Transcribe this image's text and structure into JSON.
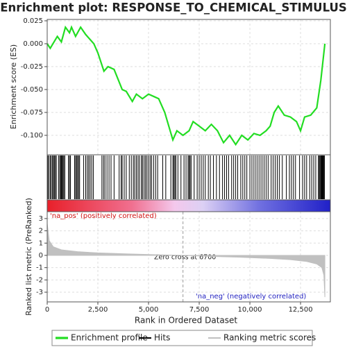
{
  "chart_data": [
    {
      "type": "line",
      "title": "Enrichment plot: RESPONSE_TO_CHEMICAL_STIMULUS",
      "ylabel": "Enrichment score (ES)",
      "xlim": [
        0,
        13970
      ],
      "ylim": [
        -0.1212,
        0.0265
      ],
      "yticks": [
        {
          "value": 0.025,
          "label": "0.025"
        },
        {
          "value": 0,
          "label": "0.000"
        },
        {
          "value": -0.025,
          "label": "-0.025"
        },
        {
          "value": -0.05,
          "label": "-0.050"
        },
        {
          "value": -0.075,
          "label": "-0.075"
        },
        {
          "value": -0.1,
          "label": "-0.100"
        }
      ],
      "grid": true,
      "x": [
        0,
        150,
        500,
        700,
        900,
        1100,
        1200,
        1400,
        1650,
        1900,
        2100,
        2300,
        2500,
        2800,
        3000,
        3300,
        3700,
        3900,
        4200,
        4400,
        4700,
        5000,
        5300,
        5500,
        5800,
        6000,
        6200,
        6400,
        6700,
        7000,
        7200,
        7500,
        7800,
        8100,
        8400,
        8700,
        9000,
        9300,
        9600,
        9900,
        10200,
        10500,
        10800,
        11000,
        11200,
        11400,
        11700,
        12000,
        12300,
        12500,
        12700,
        13000,
        13300,
        13500,
        13650,
        13700
      ],
      "series": [
        {
          "name": "Enrichment profile",
          "color": "#22dd22",
          "values": [
            0,
            -0.005,
            0.008,
            0.002,
            0.018,
            0.012,
            0.018,
            0.008,
            0.018,
            0.01,
            0.005,
            0,
            -0.01,
            -0.03,
            -0.025,
            -0.028,
            -0.05,
            -0.052,
            -0.063,
            -0.055,
            -0.06,
            -0.055,
            -0.058,
            -0.06,
            -0.075,
            -0.09,
            -0.105,
            -0.095,
            -0.1,
            -0.095,
            -0.085,
            -0.09,
            -0.095,
            -0.088,
            -0.095,
            -0.108,
            -0.1,
            -0.11,
            -0.1,
            -0.105,
            -0.098,
            -0.1,
            -0.095,
            -0.09,
            -0.075,
            -0.068,
            -0.078,
            -0.08,
            -0.085,
            -0.095,
            -0.08,
            -0.078,
            -0.07,
            -0.04,
            -0.01,
            0
          ]
        }
      ]
    },
    {
      "type": "hits",
      "xlim": [
        0,
        13970
      ],
      "series": [
        {
          "name": "Hits",
          "color": "#000000",
          "values": [
            30,
            80,
            150,
            200,
            260,
            310,
            350,
            400,
            450,
            560,
            620,
            660,
            700,
            740,
            780,
            820,
            870,
            1050,
            1100,
            1150,
            1350,
            1400,
            1450,
            1500,
            1550,
            1600,
            1800,
            1900,
            1980,
            2050,
            2120,
            2200,
            2280,
            2700,
            2780,
            2850,
            2950,
            3050,
            3150,
            3300,
            3550,
            3650,
            3700,
            3800,
            3900,
            4050,
            4150,
            4250,
            4320,
            4400,
            4480,
            4550,
            4650,
            4700,
            4780,
            4850,
            4920,
            5000,
            5080,
            5150,
            5250,
            5350,
            5450,
            5700,
            5850,
            6100,
            6200,
            6250,
            6300,
            6350,
            6450,
            6600,
            6750,
            6850,
            6950,
            7000,
            7050,
            7100,
            7250,
            7400,
            7500,
            7600,
            7700,
            7800,
            7950,
            8050,
            8200,
            8350,
            8500,
            8650,
            8750,
            8850,
            8950,
            9100,
            9200,
            9300,
            9400,
            9550,
            9650,
            9750,
            9850,
            10000,
            10100,
            10200,
            10300,
            10400,
            10500,
            10600,
            10700,
            10800,
            10900,
            11050,
            11150,
            11250,
            11350,
            11450,
            11600,
            11800,
            11950,
            12050,
            12150,
            12250,
            12450,
            12600,
            12700,
            12800,
            12950,
            13050,
            13150,
            13250,
            13380,
            13420,
            13460,
            13500,
            13530,
            13560,
            13590,
            13620,
            13650,
            13680
          ]
        }
      ]
    },
    {
      "type": "area",
      "ylabel": "Ranked list metric (PreRanked)",
      "xlabel": "Rank in Ordered Dataset",
      "xlim": [
        0,
        13970
      ],
      "ylim": [
        -3.79,
        3.56
      ],
      "xticks": [
        0,
        {
          "value": 2500,
          "label": "2,500"
        },
        {
          "value": 5000,
          "label": "5,000"
        },
        {
          "value": 7500,
          "label": "7,500"
        },
        {
          "value": 10000,
          "label": "10,000"
        },
        {
          "value": 12500,
          "label": "12,500"
        }
      ],
      "yticks": [
        3,
        2,
        1,
        0,
        -1,
        -2,
        -3
      ],
      "grid": true,
      "x": [
        0,
        100,
        300,
        700,
        1500,
        2500,
        4000,
        5500,
        6700,
        8000,
        9500,
        11000,
        12000,
        12800,
        13300,
        13550,
        13650,
        13700
      ],
      "series": [
        {
          "name": "Ranking metric scores",
          "color": "#c0c0c0",
          "values": [
            2.6,
            1.2,
            0.7,
            0.45,
            0.3,
            0.2,
            0.12,
            0.05,
            0,
            -0.08,
            -0.15,
            -0.25,
            -0.35,
            -0.5,
            -0.7,
            -1.0,
            -1.6,
            -3.4
          ]
        }
      ],
      "pos_label": "'na_pos' (positively correlated)",
      "neg_label": "'na_neg' (negatively correlated)",
      "zero_cross": 6700,
      "zero_cross_label": "Zero cross at 6700"
    }
  ]
}
